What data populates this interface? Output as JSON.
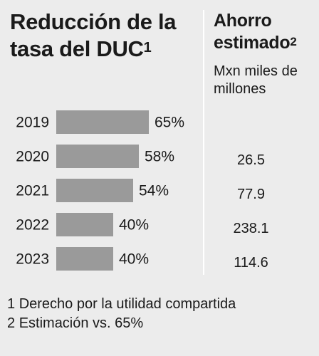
{
  "left_title": {
    "text": "Reducción de la tasa del DUC",
    "marker": "1"
  },
  "right_title": {
    "text": "Ahorro estimado",
    "marker": "2"
  },
  "savings_unit": "Mxn miles de millones",
  "chart_data": {
    "type": "bar",
    "orientation": "horizontal",
    "categories": [
      "2019",
      "2020",
      "2021",
      "2022",
      "2023"
    ],
    "values": [
      65,
      58,
      54,
      40,
      40
    ],
    "value_labels": [
      "65%",
      "58%",
      "54%",
      "40%",
      "40%"
    ],
    "title": "Reducción de la tasa del DUC",
    "xlim": [
      0,
      100
    ],
    "bar_color": "#9a9a9a",
    "grid": false
  },
  "savings": [
    {
      "year": "2019",
      "value": ""
    },
    {
      "year": "2020",
      "value": "26.5"
    },
    {
      "year": "2021",
      "value": "77.9"
    },
    {
      "year": "2022",
      "value": "238.1"
    },
    {
      "year": "2023",
      "value": "114.6"
    }
  ],
  "footnotes": [
    {
      "marker": "1",
      "text": "Derecho por la utilidad compartida"
    },
    {
      "marker": "2",
      "text": "Estimación vs. 65%"
    }
  ]
}
